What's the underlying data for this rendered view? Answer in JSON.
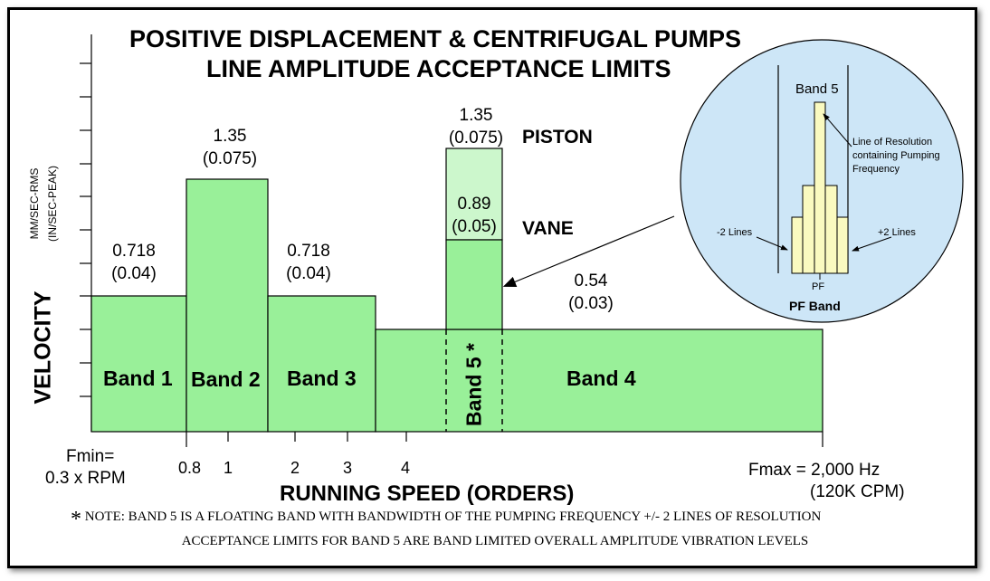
{
  "title_line1": "POSITIVE DISPLACEMENT & CENTRIFUGAL PUMPS",
  "title_line2": "LINE AMPLITUDE ACCEPTANCE LIMITS",
  "y_axis": {
    "label": "VELOCITY",
    "unit_top": "MM/SEC-RMS",
    "unit_bottom": "(IN/SEC-PEAK)"
  },
  "x_axis": {
    "label": "RUNNING SPEED (ORDERS)",
    "ticks": [
      "0.8",
      "1",
      "2",
      "3",
      "4"
    ],
    "fmin_line1": "Fmin=",
    "fmin_line2": "0.3 x RPM",
    "fmax_line1": "Fmax = 2,000 Hz",
    "fmax_line2": "(120K CPM)"
  },
  "bands": {
    "band1": {
      "label": "Band 1",
      "value": "0.718",
      "value_ips": "(0.04)"
    },
    "band2": {
      "label": "Band 2",
      "value": "1.35",
      "value_ips": "(0.075)"
    },
    "band3": {
      "label": "Band 3",
      "value": "0.718",
      "value_ips": "(0.04)"
    },
    "band4": {
      "label": "Band 4",
      "value": "0.54",
      "value_ips": "(0.03)"
    },
    "band5": {
      "label": "Band 5 *",
      "piston": {
        "label": "PISTON",
        "value": "1.35",
        "value_ips": "(0.075)"
      },
      "vane": {
        "label": "VANE",
        "value": "0.89",
        "value_ips": "(0.05)"
      }
    }
  },
  "inset": {
    "title": "Band 5",
    "resolution_text": [
      "Line of Resolution",
      "containing Pumping",
      "Frequency"
    ],
    "minus_lines": "-2 Lines",
    "plus_lines": "+2 Lines",
    "pf": "PF",
    "pf_band": "PF Band"
  },
  "note_line1_star": "*",
  "note_line1": "NOTE: BAND 5 IS A FLOATING BAND WITH BANDWIDTH OF THE PUMPING FREQUENCY +/- 2 LINES OF RESOLUTION",
  "note_line2": "ACCEPTANCE LIMITS FOR BAND 5 ARE BAND LIMITED OVERALL AMPLITUDE VIBRATION LEVELS",
  "colors": {
    "band_fill": "#99f099",
    "piston_fill": "#ccf7cc",
    "inset_fill": "#cde6f7",
    "inset_bar": "#fafac0"
  }
}
